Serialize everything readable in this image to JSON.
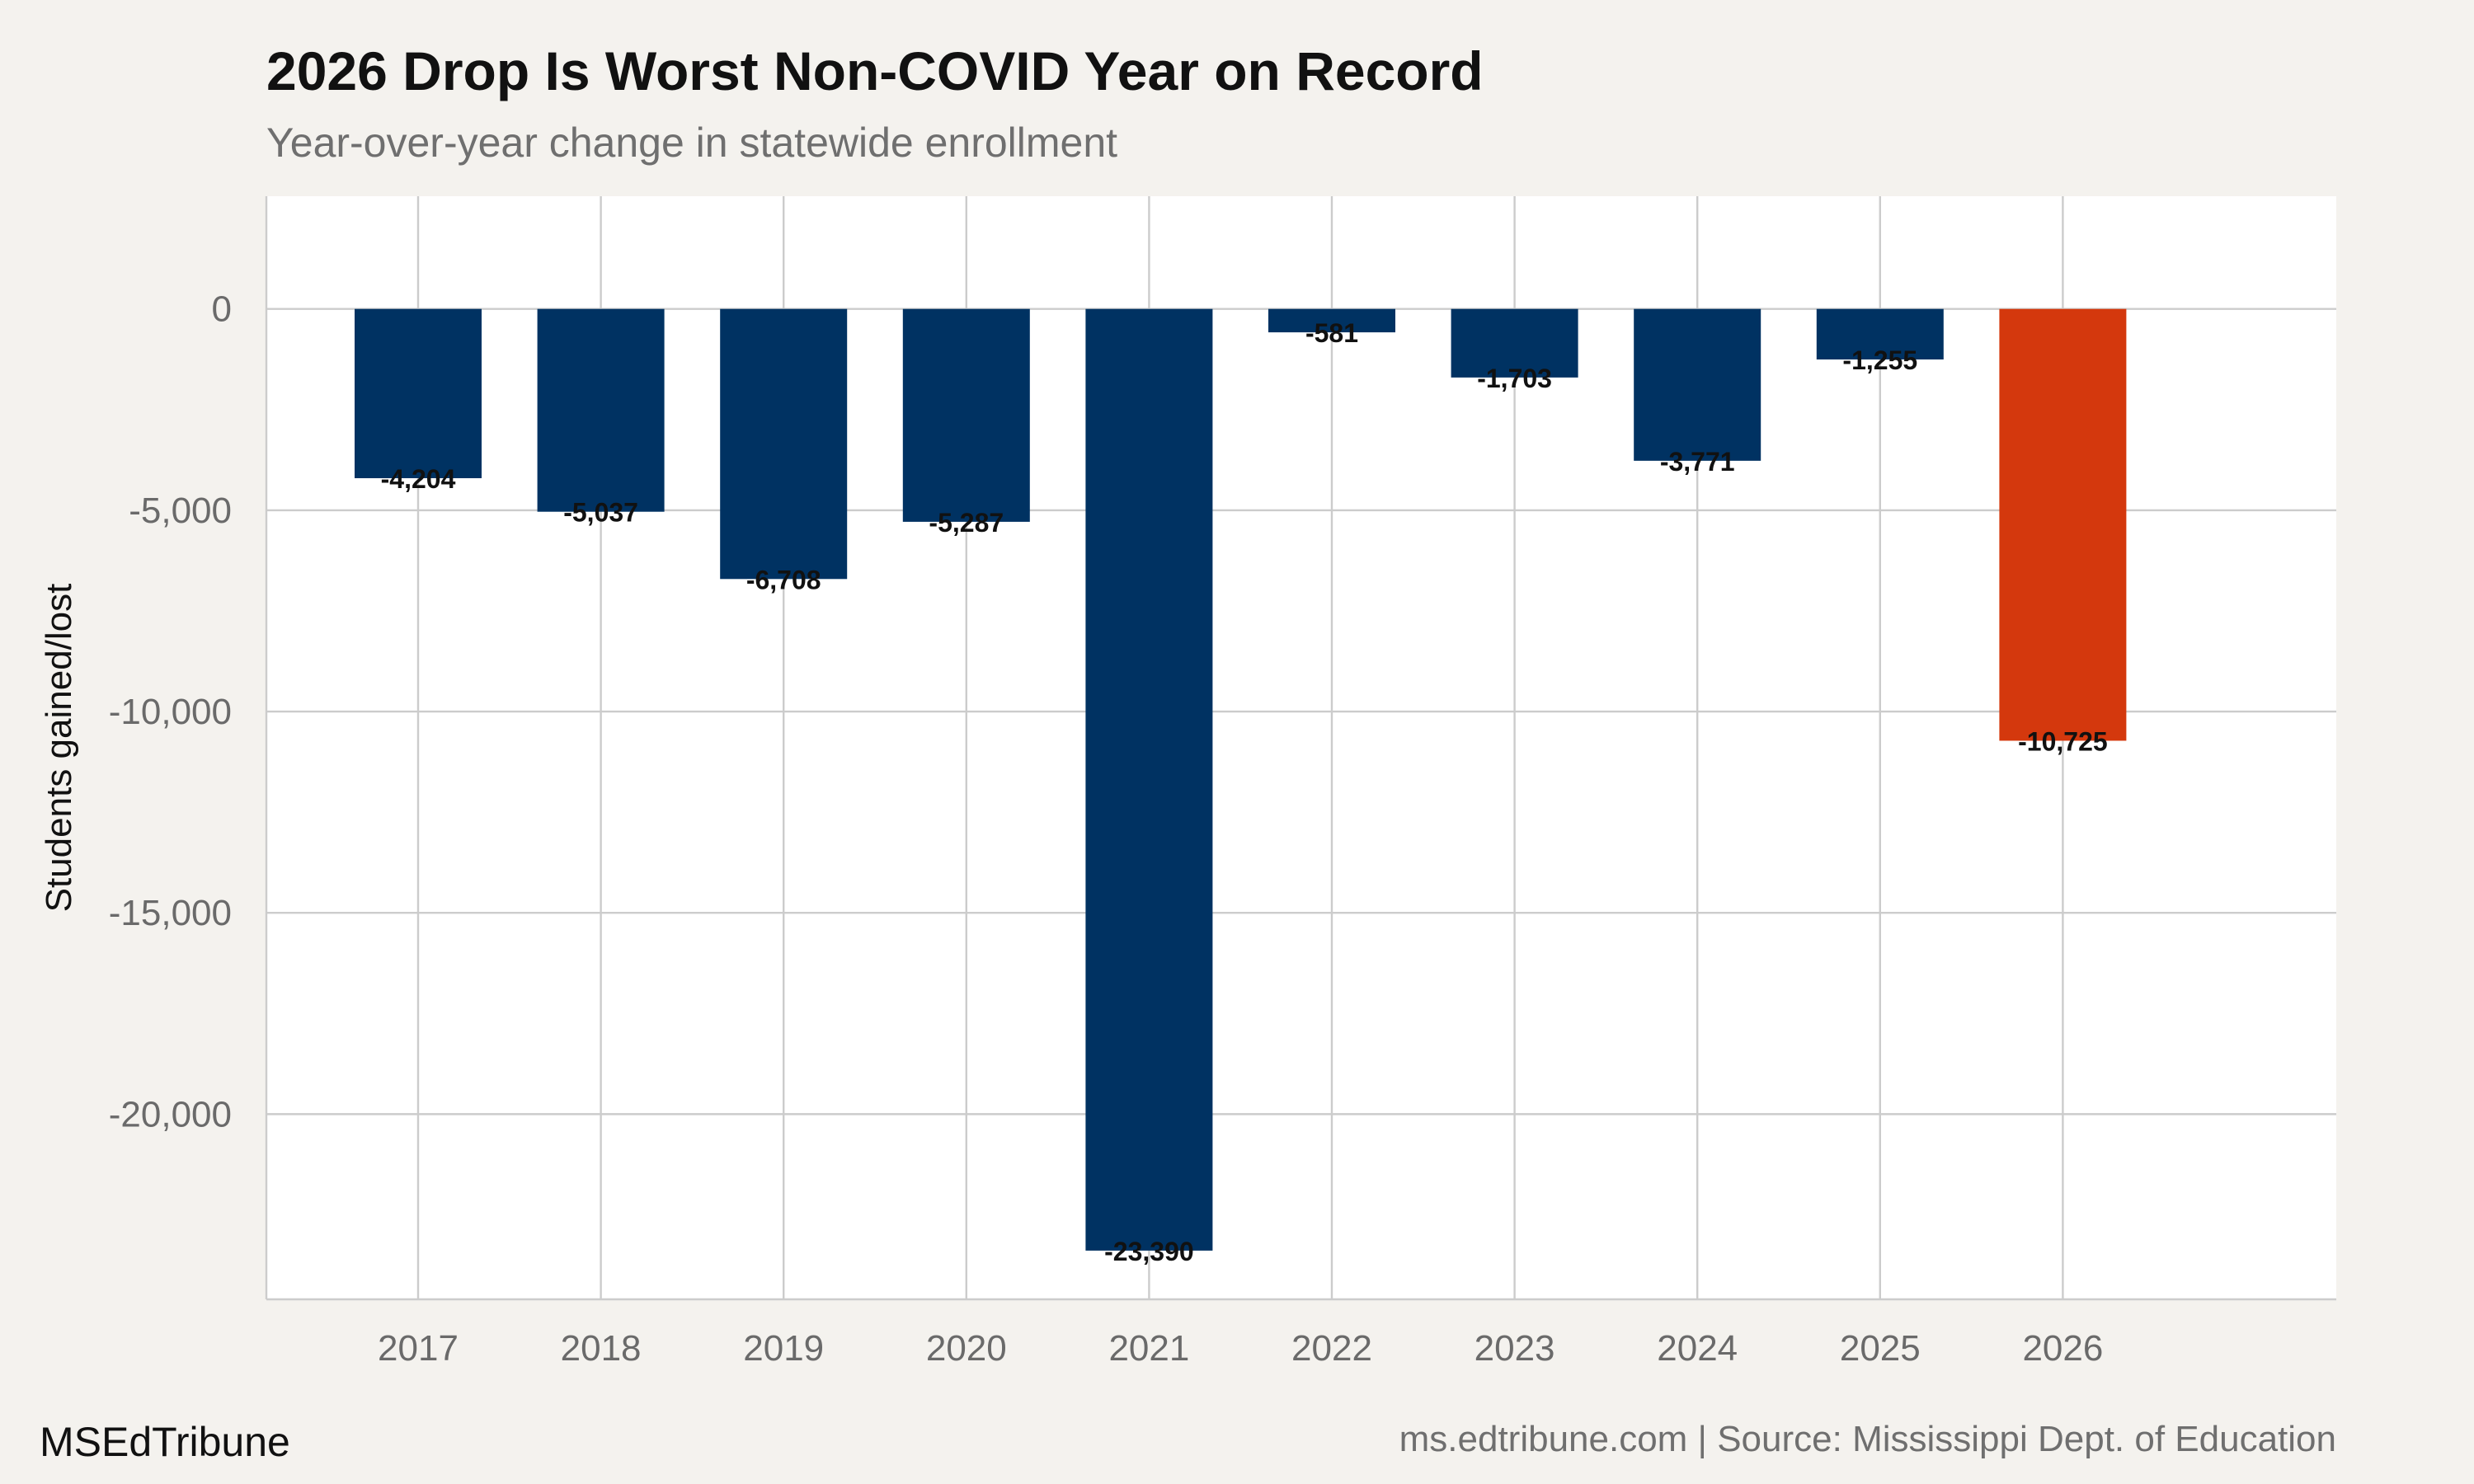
{
  "chart_data": {
    "type": "bar",
    "title": "2026 Drop Is Worst Non-COVID Year on Record",
    "subtitle": "Year-over-year change in statewide enrollment",
    "xlabel": "",
    "ylabel": "Students gained/lost",
    "categories": [
      "2017",
      "2018",
      "2019",
      "2020",
      "2021",
      "2022",
      "2023",
      "2024",
      "2025",
      "2026"
    ],
    "values": [
      -4204,
      -5037,
      -6708,
      -5287,
      -23390,
      -581,
      -1703,
      -3771,
      -1255,
      -10725
    ],
    "data_labels": [
      "-4,204",
      "-5,037",
      "-6,708",
      "-5,287",
      "-23,390",
      "-581",
      "-1,703",
      "-3,771",
      "-1,255",
      "-10,725"
    ],
    "highlight_category": "2026",
    "ylim": [
      -24600,
      2800
    ],
    "yticks": [
      0,
      -5000,
      -10000,
      -15000,
      -20000
    ],
    "ytick_labels": [
      "0",
      "-5,000",
      "-10,000",
      "-15,000",
      "-20,000"
    ],
    "grid": true,
    "legend": "none",
    "colors": {
      "bar": "#003262",
      "highlight": "#d4380d",
      "grid": "#cccccc",
      "panel": "#ffffff",
      "background": "#f4f2ee"
    }
  },
  "footer": {
    "brand": "MSEdTribune",
    "source": "ms.edtribune.com | Source: Mississippi Dept. of Education"
  }
}
